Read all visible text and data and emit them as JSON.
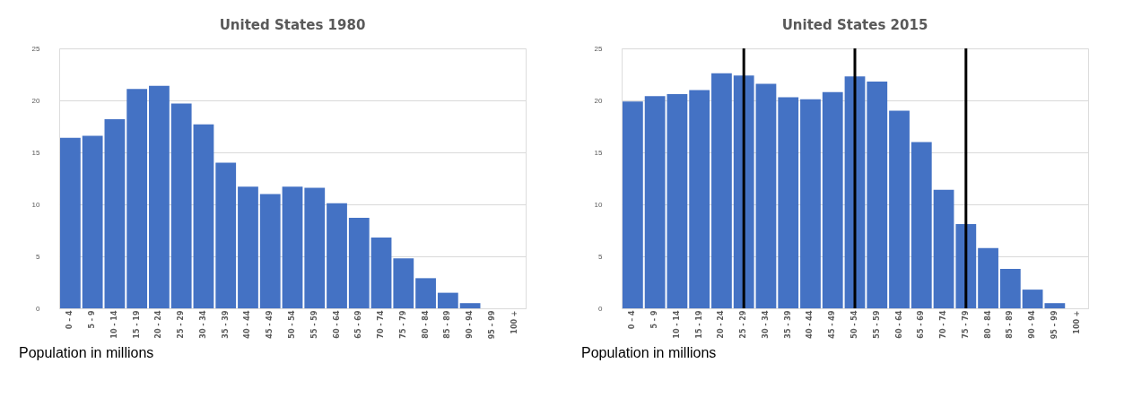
{
  "chart_data": [
    {
      "type": "bar",
      "title": "United States 1980",
      "categories": [
        "0 – 4",
        "5 - 9",
        "10 - 14",
        "15 - 19",
        "20 - 24",
        "25 - 29",
        "30 - 34",
        "35 - 39",
        "40 - 44",
        "45 - 49",
        "50 - 54",
        "55 - 59",
        "60 - 64",
        "65 - 69",
        "70 - 74",
        "75 - 79",
        "80 - 84",
        "85 - 89",
        "90 - 94",
        "95 – 99",
        "100 +"
      ],
      "values": [
        16.4,
        16.6,
        18.2,
        21.1,
        21.4,
        19.7,
        17.7,
        14.0,
        11.7,
        11.0,
        11.7,
        11.6,
        10.1,
        8.7,
        6.8,
        4.8,
        2.9,
        1.5,
        0.5,
        0,
        0
      ],
      "color": "#4472c4",
      "ylim": [
        0,
        25
      ],
      "yticks": [
        0,
        5,
        10,
        15,
        20,
        25
      ],
      "grid": "y",
      "annotations": [
        "Population in millions"
      ]
    },
    {
      "type": "bar",
      "title": "United States 2015",
      "categories": [
        "0 – 4",
        "5 - 9",
        "10 - 14",
        "15 - 19",
        "20 - 24",
        "25 - 29",
        "30 - 34",
        "35 - 39",
        "40 - 44",
        "45 - 49",
        "50 - 54",
        "55 - 59",
        "60 - 64",
        "65 - 69",
        "70 - 74",
        "75 - 79",
        "80 - 84",
        "85 - 89",
        "90 - 94",
        "95 – 99",
        "100 +"
      ],
      "values": [
        19.9,
        20.4,
        20.6,
        21.0,
        22.6,
        22.4,
        21.6,
        20.3,
        20.1,
        20.8,
        22.3,
        21.8,
        19.0,
        16.0,
        11.4,
        8.1,
        5.8,
        3.8,
        1.8,
        0.5,
        0
      ],
      "color": "#4472c4",
      "ylim": [
        0,
        25
      ],
      "yticks": [
        0,
        5,
        10,
        15,
        20,
        25
      ],
      "grid": "y",
      "ref_lines": [
        {
          "axis": "x",
          "value": "25 - 29",
          "color": "#000000"
        },
        {
          "axis": "x",
          "value": "50 - 54",
          "color": "#000000"
        },
        {
          "axis": "x",
          "value": "75 - 79",
          "color": "#000000"
        }
      ],
      "annotations": [
        "Population in millions"
      ]
    }
  ]
}
